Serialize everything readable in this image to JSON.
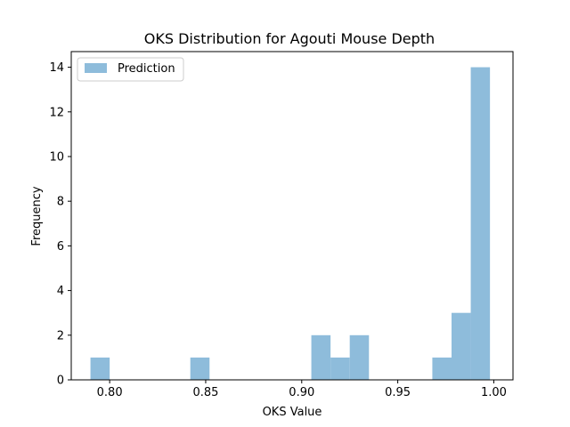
{
  "chart_data": {
    "type": "bar",
    "title": "OKS Distribution for Agouti Mouse Depth",
    "xlabel": "OKS Value",
    "ylabel": "Frequency",
    "xlim": [
      0.78,
      1.01
    ],
    "ylim": [
      0,
      14.7
    ],
    "x_ticks": [
      "0.80",
      "0.85",
      "0.90",
      "0.95",
      "1.00"
    ],
    "x_tick_values": [
      0.8,
      0.85,
      0.9,
      0.95,
      1.0
    ],
    "y_ticks": [
      "0",
      "2",
      "4",
      "6",
      "8",
      "10",
      "12",
      "14"
    ],
    "y_tick_values": [
      0,
      2,
      4,
      6,
      8,
      10,
      12,
      14
    ],
    "series": [
      {
        "name": "Prediction",
        "color": "#8ebcdb",
        "bins": [
          {
            "x0": 0.79,
            "x1": 0.8,
            "count": 1
          },
          {
            "x0": 0.842,
            "x1": 0.852,
            "count": 1
          },
          {
            "x0": 0.905,
            "x1": 0.915,
            "count": 2
          },
          {
            "x0": 0.915,
            "x1": 0.925,
            "count": 1
          },
          {
            "x0": 0.925,
            "x1": 0.935,
            "count": 2
          },
          {
            "x0": 0.968,
            "x1": 0.978,
            "count": 1
          },
          {
            "x0": 0.978,
            "x1": 0.988,
            "count": 3
          },
          {
            "x0": 0.988,
            "x1": 0.998,
            "count": 14
          }
        ]
      }
    ],
    "legend": {
      "position": "top-left",
      "label": "Prediction"
    },
    "grid": false
  }
}
